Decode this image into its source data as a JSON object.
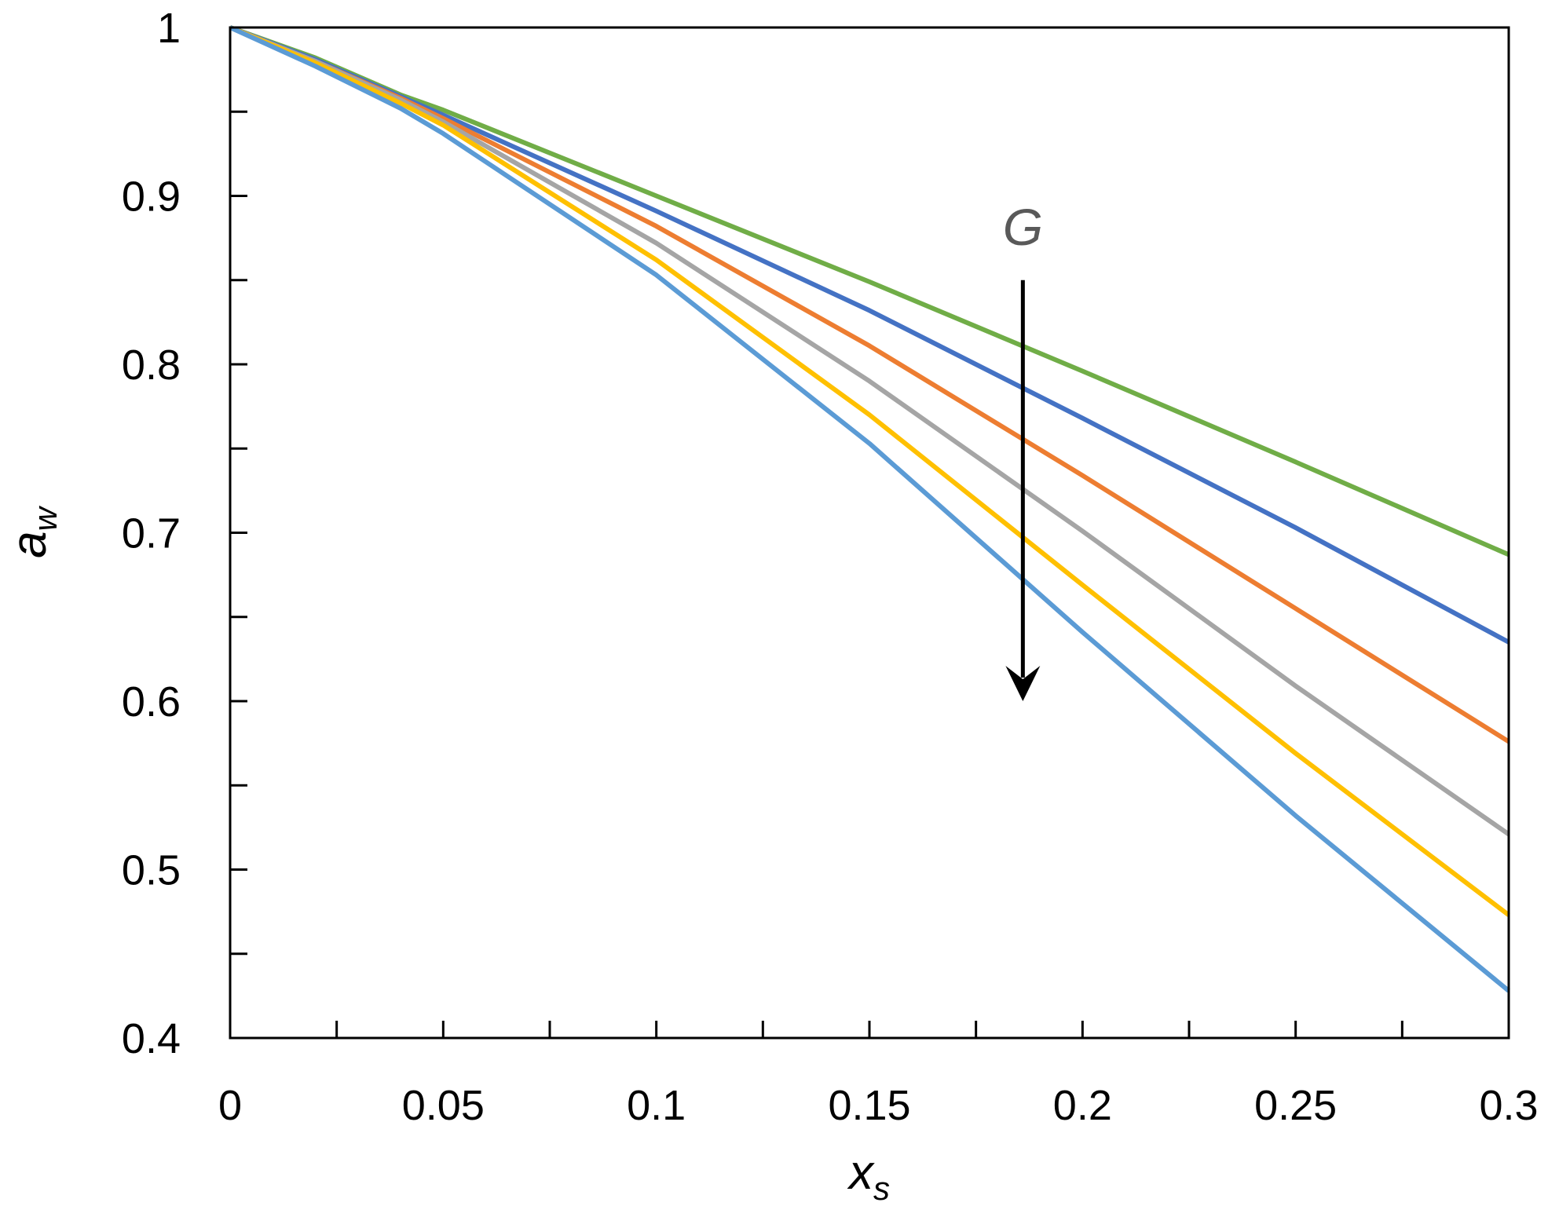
{
  "chart_data": {
    "type": "line",
    "title": "",
    "xlabel": {
      "main": "x",
      "sub": "s"
    },
    "ylabel": {
      "main": "a",
      "sub": "w"
    },
    "xlim": [
      0,
      0.3
    ],
    "ylim": [
      0.4,
      1.0
    ],
    "grid": false,
    "x_ticks": [
      0,
      0.05,
      0.1,
      0.15,
      0.2,
      0.25,
      0.3
    ],
    "x_tick_labels": [
      "0",
      "0.05",
      "0.1",
      "0.15",
      "0.2",
      "0.25",
      "0.3"
    ],
    "x_minor_step": 0.025,
    "y_ticks": [
      0.4,
      0.5,
      0.6,
      0.7,
      0.8,
      0.9,
      1.0
    ],
    "y_tick_labels": [
      "0.4",
      "0.5",
      "0.6",
      "0.7",
      "0.8",
      "0.9",
      "1"
    ],
    "y_minor_step": 0.05,
    "x": [
      0,
      0.02,
      0.04,
      0.05,
      0.1,
      0.15,
      0.2,
      0.25,
      0.3
    ],
    "series": [
      {
        "name": "series-green",
        "color": "#70ad47",
        "values": [
          1.0,
          0.982,
          0.96,
          0.951,
          0.9,
          0.849,
          0.796,
          0.742,
          0.687
        ]
      },
      {
        "name": "series-blue",
        "color": "#4472c4",
        "values": [
          1.0,
          0.981,
          0.959,
          0.948,
          0.891,
          0.832,
          0.768,
          0.703,
          0.635
        ]
      },
      {
        "name": "series-orange",
        "color": "#ed7d31",
        "values": [
          1.0,
          0.98,
          0.958,
          0.946,
          0.882,
          0.811,
          0.734,
          0.655,
          0.576
        ]
      },
      {
        "name": "series-gray",
        "color": "#a5a5a5",
        "values": [
          1.0,
          0.98,
          0.957,
          0.944,
          0.872,
          0.79,
          0.701,
          0.609,
          0.521
        ]
      },
      {
        "name": "series-yellow",
        "color": "#ffc000",
        "values": [
          1.0,
          0.979,
          0.955,
          0.942,
          0.862,
          0.77,
          0.669,
          0.569,
          0.473
        ]
      },
      {
        "name": "series-lightblue",
        "color": "#5b9bd5",
        "values": [
          1.0,
          0.977,
          0.952,
          0.937,
          0.853,
          0.753,
          0.641,
          0.532,
          0.428
        ]
      }
    ],
    "annotation": {
      "text": "G",
      "arrow": {
        "x": 0.186,
        "from_y": 0.85,
        "to_y": 0.6,
        "direction": "down"
      }
    }
  }
}
